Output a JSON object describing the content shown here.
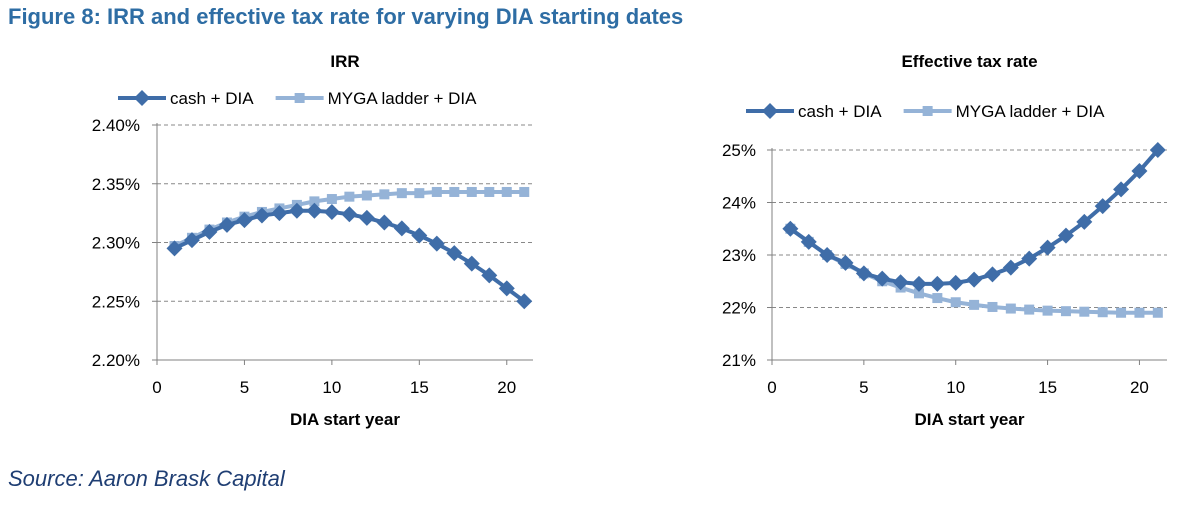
{
  "figure_title": "Figure 8: IRR and effective tax rate for varying DIA starting dates",
  "source": "Source: Aaron Brask Capital",
  "colors": {
    "title": "#2E6DA4",
    "source": "#1F3E73",
    "series_dark": "#3F6DA8",
    "series_light": "#95B3D7",
    "grid": "#888888",
    "axis": "#808080"
  },
  "chart_data": [
    {
      "type": "line",
      "title": "IRR",
      "xlabel": "DIA start year",
      "ylabel": "",
      "xlim": [
        0,
        21.5
      ],
      "ylim": [
        0.022,
        0.024
      ],
      "xticks": [
        0,
        5,
        10,
        15,
        20
      ],
      "yticks": [
        0.022,
        0.0225,
        0.023,
        0.0235,
        0.024
      ],
      "ytick_labels": [
        "2.20%",
        "2.25%",
        "2.30%",
        "2.35%",
        "2.40%"
      ],
      "grid": "horizontal dashed",
      "legend": "top",
      "x": [
        1,
        2,
        3,
        4,
        5,
        6,
        7,
        8,
        9,
        10,
        11,
        12,
        13,
        14,
        15,
        16,
        17,
        18,
        19,
        20,
        21
      ],
      "series": [
        {
          "name": "cash + DIA",
          "marker": "diamond",
          "color": "#3F6DA8",
          "values": [
            0.02295,
            0.02302,
            0.02309,
            0.02315,
            0.02319,
            0.02323,
            0.02325,
            0.02327,
            0.02327,
            0.02326,
            0.02324,
            0.02321,
            0.02317,
            0.02312,
            0.02306,
            0.02299,
            0.02291,
            0.02282,
            0.02272,
            0.02261,
            0.0225
          ]
        },
        {
          "name": "MYGA ladder + DIA",
          "marker": "square",
          "color": "#95B3D7",
          "values": [
            0.02297,
            0.02304,
            0.02311,
            0.02317,
            0.02322,
            0.02326,
            0.02329,
            0.02332,
            0.02335,
            0.02337,
            0.02339,
            0.0234,
            0.02341,
            0.02342,
            0.02342,
            0.02343,
            0.02343,
            0.02343,
            0.02343,
            0.02343,
            0.02343
          ]
        }
      ]
    },
    {
      "type": "line",
      "title": "Effective tax rate",
      "xlabel": "DIA start year",
      "ylabel": "",
      "xlim": [
        0,
        21.5
      ],
      "ylim": [
        0.21,
        0.25
      ],
      "xticks": [
        0,
        5,
        10,
        15,
        20
      ],
      "yticks": [
        0.21,
        0.22,
        0.23,
        0.24,
        0.25
      ],
      "ytick_labels": [
        "21%",
        "22%",
        "23%",
        "24%",
        "25%"
      ],
      "grid": "horizontal dashed",
      "legend": "top",
      "x": [
        1,
        2,
        3,
        4,
        5,
        6,
        7,
        8,
        9,
        10,
        11,
        12,
        13,
        14,
        15,
        16,
        17,
        18,
        19,
        20,
        21
      ],
      "series": [
        {
          "name": "cash + DIA",
          "marker": "diamond",
          "color": "#3F6DA8",
          "values": [
            0.235,
            0.2325,
            0.23,
            0.2285,
            0.2265,
            0.2255,
            0.2248,
            0.2245,
            0.2245,
            0.2247,
            0.2253,
            0.2263,
            0.2276,
            0.2293,
            0.2314,
            0.2337,
            0.2363,
            0.2393,
            0.2425,
            0.246,
            0.25
          ]
        },
        {
          "name": "MYGA ladder + DIA",
          "marker": "square",
          "color": "#95B3D7",
          "values": [
            0.235,
            0.2325,
            0.23,
            0.2283,
            0.2265,
            0.225,
            0.2238,
            0.2227,
            0.2218,
            0.221,
            0.2205,
            0.2201,
            0.2198,
            0.2196,
            0.2194,
            0.2193,
            0.2192,
            0.2191,
            0.219,
            0.219,
            0.219
          ]
        }
      ]
    }
  ]
}
